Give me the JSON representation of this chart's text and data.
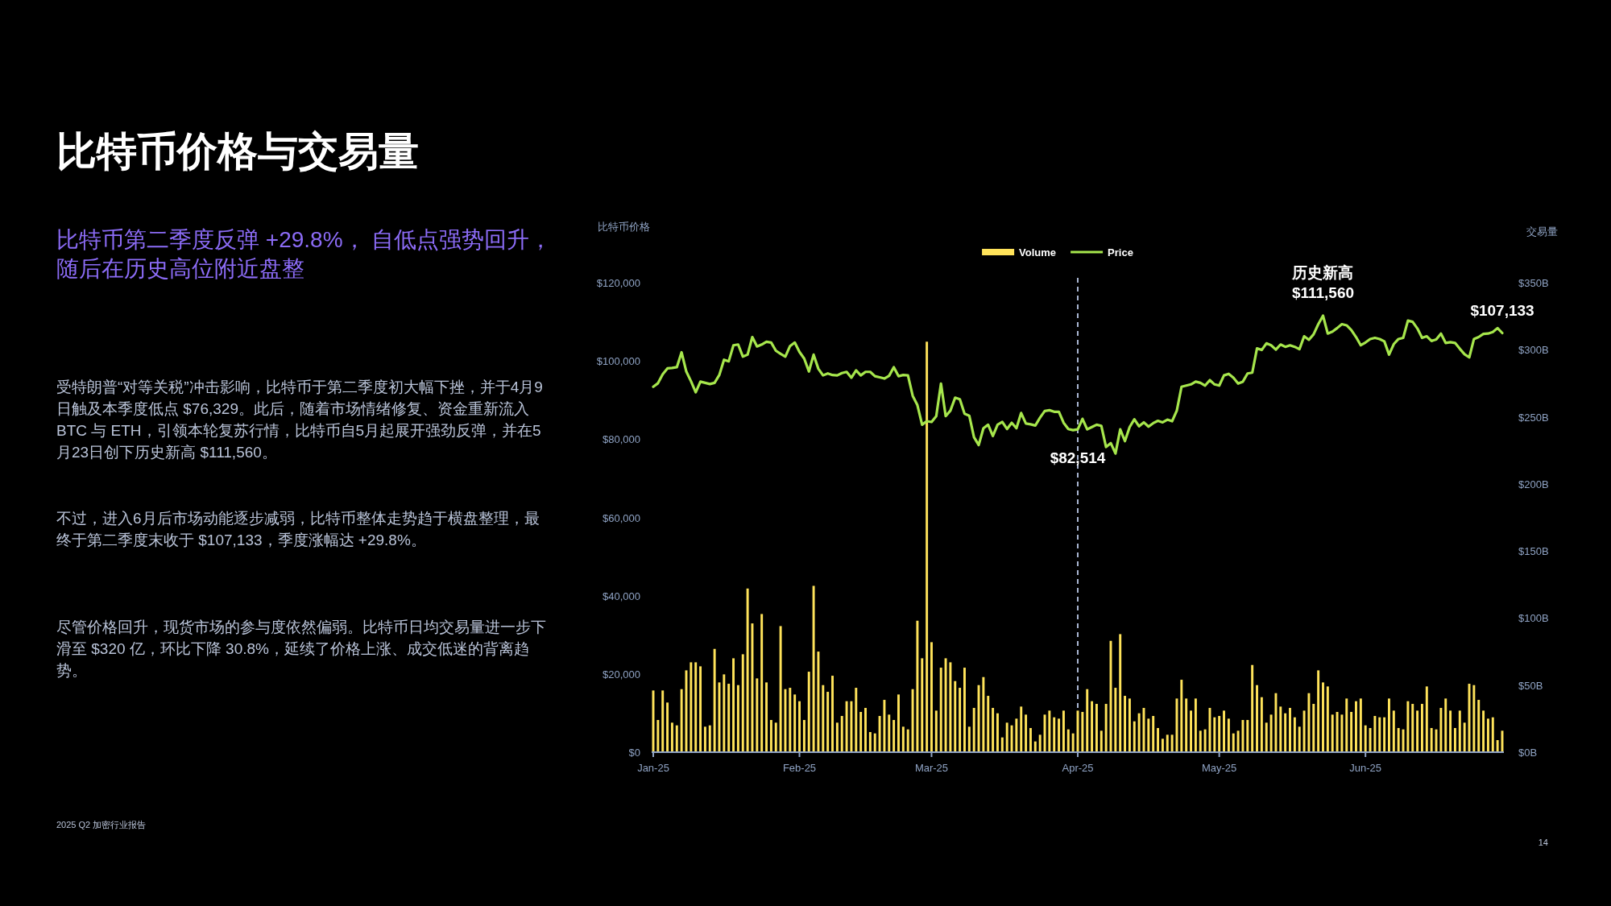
{
  "chart_data": {
    "type": "bar",
    "title": "比特币价格与交易量",
    "subtitle": "比特币第二季度反弹 +29.8%， 自低点强势回升，随后在历史高位附近盘整",
    "ylabel": "比特币价格",
    "y2label": "交易量",
    "legend": "top",
    "xlim": [
      "2025-01-01",
      "2025-06-30"
    ],
    "xticks": [
      {
        "value": "2025-01-01",
        "label": "Jan-25"
      },
      {
        "value": "2025-02-01",
        "label": "Feb-25"
      },
      {
        "value": "2025-03-01",
        "label": "Mar-25"
      },
      {
        "value": "2025-04-01",
        "label": "Apr-25"
      },
      {
        "value": "2025-05-01",
        "label": "May-25"
      },
      {
        "value": "2025-06-01",
        "label": "Jun-25"
      }
    ],
    "ylim": [
      0,
      120000
    ],
    "yticks": [
      {
        "value": 0,
        "label": "$0"
      },
      {
        "value": 20000,
        "label": "$20,000"
      },
      {
        "value": 40000,
        "label": "$40,000"
      },
      {
        "value": 60000,
        "label": "$60,000"
      },
      {
        "value": 80000,
        "label": "$80,000"
      },
      {
        "value": 100000,
        "label": "$100,000"
      },
      {
        "value": 120000,
        "label": "$120,000"
      }
    ],
    "y2lim": [
      0,
      350
    ],
    "y2ticks": [
      {
        "value": 0,
        "label": "$0B"
      },
      {
        "value": 50,
        "label": "$50B"
      },
      {
        "value": 100,
        "label": "$100B"
      },
      {
        "value": 150,
        "label": "$150B"
      },
      {
        "value": 200,
        "label": "$200B"
      },
      {
        "value": 250,
        "label": "$250B"
      },
      {
        "value": 300,
        "label": "$300B"
      },
      {
        "value": 350,
        "label": "$350B"
      }
    ],
    "x": [
      "2025-01-01",
      "2025-01-02",
      "2025-01-03",
      "2025-01-04",
      "2025-01-05",
      "2025-01-06",
      "2025-01-07",
      "2025-01-08",
      "2025-01-09",
      "2025-01-10",
      "2025-01-11",
      "2025-01-12",
      "2025-01-13",
      "2025-01-14",
      "2025-01-15",
      "2025-01-16",
      "2025-01-17",
      "2025-01-18",
      "2025-01-19",
      "2025-01-20",
      "2025-01-21",
      "2025-01-22",
      "2025-01-23",
      "2025-01-24",
      "2025-01-25",
      "2025-01-26",
      "2025-01-27",
      "2025-01-28",
      "2025-01-29",
      "2025-01-30",
      "2025-01-31",
      "2025-02-01",
      "2025-02-02",
      "2025-02-03",
      "2025-02-04",
      "2025-02-05",
      "2025-02-06",
      "2025-02-07",
      "2025-02-08",
      "2025-02-09",
      "2025-02-10",
      "2025-02-11",
      "2025-02-12",
      "2025-02-13",
      "2025-02-14",
      "2025-02-15",
      "2025-02-16",
      "2025-02-17",
      "2025-02-18",
      "2025-02-19",
      "2025-02-20",
      "2025-02-21",
      "2025-02-22",
      "2025-02-23",
      "2025-02-24",
      "2025-02-25",
      "2025-02-26",
      "2025-02-27",
      "2025-02-28",
      "2025-03-01",
      "2025-03-02",
      "2025-03-03",
      "2025-03-04",
      "2025-03-05",
      "2025-03-06",
      "2025-03-07",
      "2025-03-08",
      "2025-03-09",
      "2025-03-10",
      "2025-03-11",
      "2025-03-12",
      "2025-03-13",
      "2025-03-14",
      "2025-03-15",
      "2025-03-16",
      "2025-03-17",
      "2025-03-18",
      "2025-03-19",
      "2025-03-20",
      "2025-03-21",
      "2025-03-22",
      "2025-03-23",
      "2025-03-24",
      "2025-03-25",
      "2025-03-26",
      "2025-03-27",
      "2025-03-28",
      "2025-03-29",
      "2025-03-30",
      "2025-03-31",
      "2025-04-01",
      "2025-04-02",
      "2025-04-03",
      "2025-04-04",
      "2025-04-05",
      "2025-04-06",
      "2025-04-07",
      "2025-04-08",
      "2025-04-09",
      "2025-04-10",
      "2025-04-11",
      "2025-04-12",
      "2025-04-13",
      "2025-04-14",
      "2025-04-15",
      "2025-04-16",
      "2025-04-17",
      "2025-04-18",
      "2025-04-19",
      "2025-04-20",
      "2025-04-21",
      "2025-04-22",
      "2025-04-23",
      "2025-04-24",
      "2025-04-25",
      "2025-04-26",
      "2025-04-27",
      "2025-04-28",
      "2025-04-29",
      "2025-04-30",
      "2025-05-01",
      "2025-05-02",
      "2025-05-03",
      "2025-05-04",
      "2025-05-05",
      "2025-05-06",
      "2025-05-07",
      "2025-05-08",
      "2025-05-09",
      "2025-05-10",
      "2025-05-11",
      "2025-05-12",
      "2025-05-13",
      "2025-05-14",
      "2025-05-15",
      "2025-05-16",
      "2025-05-17",
      "2025-05-18",
      "2025-05-19",
      "2025-05-20",
      "2025-05-21",
      "2025-05-22",
      "2025-05-23",
      "2025-05-24",
      "2025-05-25",
      "2025-05-26",
      "2025-05-27",
      "2025-05-28",
      "2025-05-29",
      "2025-05-30",
      "2025-05-31",
      "2025-06-01",
      "2025-06-02",
      "2025-06-03",
      "2025-06-04",
      "2025-06-05",
      "2025-06-06",
      "2025-06-07",
      "2025-06-08",
      "2025-06-09",
      "2025-06-10",
      "2025-06-11",
      "2025-06-12",
      "2025-06-13",
      "2025-06-14",
      "2025-06-15",
      "2025-06-16",
      "2025-06-17",
      "2025-06-18",
      "2025-06-19",
      "2025-06-20",
      "2025-06-21",
      "2025-06-22",
      "2025-06-23",
      "2025-06-24",
      "2025-06-25",
      "2025-06-26",
      "2025-06-27",
      "2025-06-28",
      "2025-06-29",
      "2025-06-30"
    ],
    "series": [
      {
        "name": "Volume",
        "axis": "y2",
        "color": "#ffe35a",
        "values": [
          46,
          24,
          46,
          37,
          22,
          20,
          47,
          61,
          67,
          67,
          64,
          19,
          20,
          77,
          52,
          58,
          51,
          70,
          50,
          73,
          122,
          96,
          55,
          103,
          52,
          24,
          22,
          94,
          47,
          48,
          43,
          38,
          24,
          60,
          124,
          75,
          50,
          45,
          57,
          22,
          27,
          38,
          38,
          48,
          30,
          33,
          15,
          14,
          27,
          39,
          28,
          24,
          43,
          19,
          17,
          47,
          98,
          70,
          306,
          82,
          31,
          63,
          70,
          67,
          53,
          48,
          63,
          19,
          33,
          50,
          56,
          42,
          33,
          29,
          11,
          22,
          20,
          25,
          34,
          28,
          18,
          8,
          13,
          28,
          31,
          26,
          25,
          31,
          17,
          14,
          31,
          30,
          47,
          38,
          36,
          16,
          36,
          83,
          48,
          88,
          42,
          40,
          23,
          29,
          33,
          25,
          27,
          18,
          10,
          13,
          13,
          40,
          54,
          40,
          31,
          40,
          16,
          17,
          33,
          26,
          27,
          31,
          25,
          14,
          16,
          24,
          24,
          65,
          50,
          41,
          22,
          28,
          44,
          34,
          29,
          33,
          26,
          19,
          31,
          44,
          36,
          61,
          52,
          49,
          28,
          30,
          28,
          40,
          30,
          38,
          40,
          20,
          18,
          27,
          26,
          26,
          40,
          31,
          18,
          17,
          38,
          36,
          31,
          36,
          49,
          18,
          17,
          33,
          40,
          31,
          18,
          31,
          22,
          51,
          50,
          39,
          31,
          25,
          26,
          9,
          16
        ]
      },
      {
        "name": "Price",
        "type": "line",
        "color": "#a6e64c",
        "values": [
          93400,
          94300,
          96600,
          98100,
          98200,
          98400,
          102200,
          97300,
          94800,
          92000,
          94700,
          94400,
          94100,
          94400,
          96400,
          100300,
          99900,
          104000,
          104200,
          101100,
          101600,
          106100,
          103700,
          104200,
          104900,
          104700,
          102600,
          101800,
          101100,
          103800,
          104700,
          102300,
          100600,
          97300,
          101600,
          98000,
          96300,
          96800,
          96400,
          96300,
          96900,
          97200,
          95700,
          97600,
          96300,
          97200,
          97200,
          96100,
          95800,
          95500,
          96200,
          98400,
          96100,
          96400,
          96300,
          91100,
          88700,
          83700,
          84600,
          84400,
          85900,
          94200,
          85900,
          87300,
          90600,
          90200,
          86500,
          86000,
          80500,
          78500,
          82800,
          83700,
          80800,
          83700,
          84400,
          82600,
          84200,
          82800,
          86700,
          84000,
          83800,
          83500,
          85500,
          87200,
          87400,
          87000,
          87000,
          84200,
          82600,
          82300,
          82514,
          85200,
          82500,
          83100,
          83700,
          83400,
          78000,
          79000,
          76329,
          82500,
          79500,
          83100,
          85100,
          83300,
          84300,
          83200,
          84100,
          84700,
          84300,
          85000,
          84600,
          87300,
          93400,
          93700,
          94000,
          94700,
          94400,
          93700,
          95100,
          94000,
          93700,
          96300,
          96700,
          95700,
          94200,
          94700,
          96800,
          97000,
          103200,
          102800,
          104500,
          104000,
          102900,
          104200,
          103600,
          104000,
          103600,
          103000,
          106300,
          105400,
          106800,
          109400,
          111560,
          107000,
          107500,
          108400,
          109400,
          109100,
          107900,
          106100,
          104000,
          104700,
          105600,
          105900,
          105600,
          105000,
          101600,
          104300,
          105600,
          105900,
          110300,
          110000,
          108300,
          105900,
          106300,
          105100,
          105500,
          107000,
          104600,
          104800,
          104600,
          103100,
          101700,
          100900,
          105600,
          106100,
          106900,
          107000,
          107400,
          108400,
          107133
        ]
      }
    ],
    "ref_lines": [
      {
        "axis": "x",
        "value": "2025-04-01",
        "line_style": "dashed",
        "color": "#a8b4d0"
      }
    ],
    "annotations": [
      "受特朗普“对等关税”冲击影响，比特币于第二季度初大幅下挫，并于4月9日触及本季度低点 $76,329。此后，随着市场情绪修复、资金重新流入 BTC 与 ETH，引领本轮复苏行情，比特币自5月起展开强劲反弹，并在5月23日创下历史新高 $111,560。",
      "不过，进入6月后市场动能逐步减弱，比特币整体走势趋于横盘整理，最终于第二季度末收于 $107,133，季度涨幅达 +29.8%。",
      "尽管价格回升，现货市场的参与度依然偏弱。比特币日均交易量进一步下滑至 $320 亿，环比下降 30.8%，延续了价格上涨、成交低迷的背离趋势。",
      "2025 Q2 加密行业报告",
      "14",
      {
        "text": "历史新高\n$111,560",
        "x": "2025-05-23",
        "y": 111560
      },
      {
        "text": "$82,514",
        "x": "2025-04-01",
        "y": 82514
      },
      {
        "text": "$107,133",
        "x": "2025-06-30",
        "y": 107133
      }
    ]
  }
}
